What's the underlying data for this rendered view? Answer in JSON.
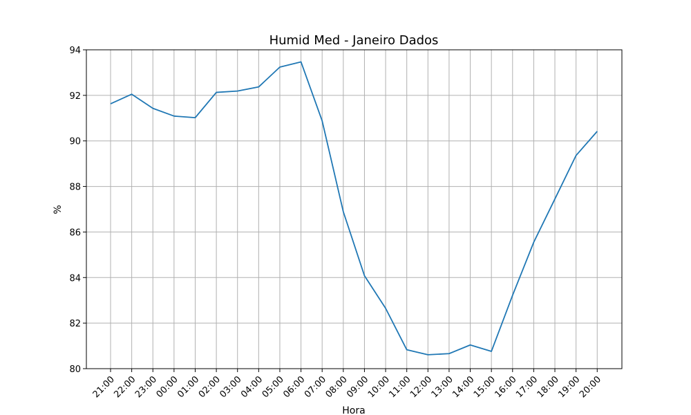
{
  "chart_data": {
    "type": "line",
    "title": "Humid Med - Janeiro Dados",
    "xlabel": "Hora",
    "ylabel": "%",
    "categories": [
      "21:00",
      "22:00",
      "23:00",
      "00:00",
      "01:00",
      "02:00",
      "03:00",
      "04:00",
      "05:00",
      "06:00",
      "07:00",
      "08:00",
      "09:00",
      "10:00",
      "11:00",
      "12:00",
      "13:00",
      "14:00",
      "15:00",
      "16:00",
      "17:00",
      "18:00",
      "19:00",
      "20:00"
    ],
    "series": [
      {
        "values": [
          91.63,
          92.05,
          91.43,
          91.09,
          91.02,
          92.13,
          92.19,
          92.37,
          93.24,
          93.47,
          90.88,
          86.89,
          84.08,
          82.65,
          80.83,
          80.61,
          80.66,
          81.04,
          80.76,
          83.22,
          85.55,
          87.45,
          89.36,
          90.42
        ],
        "color": "#1f77b4"
      }
    ],
    "ylim": [
      80,
      94
    ],
    "yticks": [
      80,
      82,
      84,
      86,
      88,
      90,
      92,
      94
    ],
    "grid": true
  }
}
